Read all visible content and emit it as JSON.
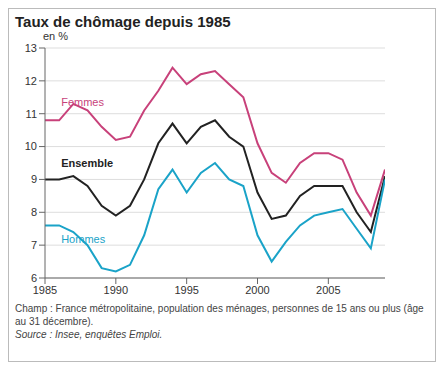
{
  "chart_data": {
    "type": "line",
    "title": "Taux de chômage depuis 1985",
    "ylabel": "en %",
    "notes": [
      "Champ : France métropolitaine, population des ménages, personnes de 15 ans ou plus (âge au 31 décembre).",
      "Source : Insee, enquêtes Emploi."
    ],
    "x": [
      1985,
      1986,
      1987,
      1988,
      1989,
      1990,
      1991,
      1992,
      1993,
      1994,
      1995,
      1996,
      1997,
      1998,
      1999,
      2000,
      2001,
      2002,
      2003,
      2004,
      2005,
      2006,
      2007,
      2008,
      2009
    ],
    "series": [
      {
        "name": "Femmes",
        "color": "#c8417a",
        "values": [
          10.8,
          10.8,
          11.3,
          11.1,
          10.6,
          10.2,
          10.3,
          11.1,
          11.7,
          12.4,
          11.9,
          12.2,
          12.3,
          11.9,
          11.5,
          10.1,
          9.2,
          8.9,
          9.5,
          9.8,
          9.8,
          9.6,
          8.6,
          7.9,
          9.3
        ]
      },
      {
        "name": "Ensemble",
        "color": "#222222",
        "values": [
          9.0,
          9.0,
          9.1,
          8.8,
          8.2,
          7.9,
          8.2,
          9.0,
          10.1,
          10.7,
          10.1,
          10.6,
          10.8,
          10.3,
          10.0,
          8.6,
          7.8,
          7.9,
          8.5,
          8.8,
          8.8,
          8.8,
          8.0,
          7.4,
          9.1
        ]
      },
      {
        "name": "Hommes",
        "color": "#1aa3c8",
        "values": [
          7.6,
          7.6,
          7.4,
          7.0,
          6.3,
          6.2,
          6.4,
          7.3,
          8.7,
          9.3,
          8.6,
          9.2,
          9.5,
          9.0,
          8.8,
          7.3,
          6.5,
          7.1,
          7.6,
          7.9,
          8.0,
          8.1,
          7.5,
          6.9,
          9.0
        ]
      }
    ],
    "xlim": [
      1985,
      2009
    ],
    "xticks": [
      1985,
      1990,
      1995,
      2000,
      2005
    ],
    "ylim": [
      6,
      13
    ],
    "yticks": [
      6,
      7,
      8,
      9,
      10,
      11,
      12,
      13
    ],
    "grid": true
  }
}
